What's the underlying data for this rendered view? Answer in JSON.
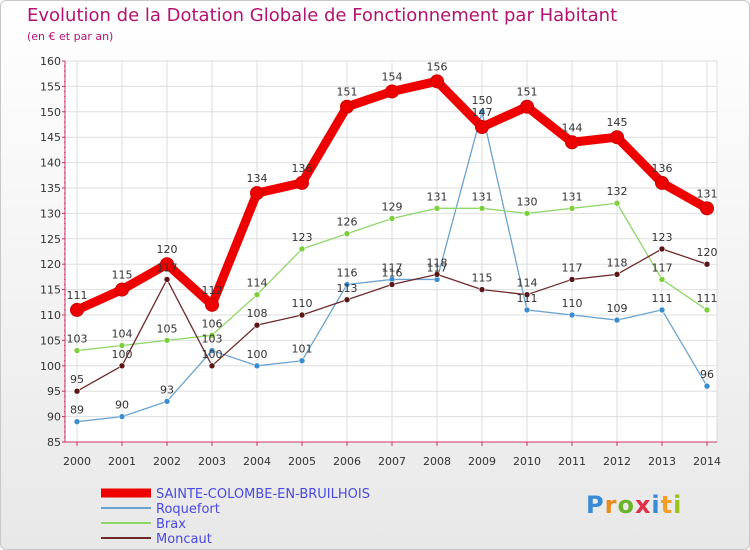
{
  "title": "Evolution de la Dotation Globale de Fonctionnement par Habitant",
  "subtitle": "(en € et par an)",
  "logo": {
    "text": "Proxiti",
    "colors": [
      "#3a8bd6",
      "#e98c1c",
      "#6cb42a",
      "#e0304a",
      "#3a8bd6",
      "#f0a020",
      "#9ac31c"
    ]
  },
  "chart_data": {
    "type": "line",
    "title": "Evolution de la Dotation Globale de Fonctionnement par Habitant",
    "ylabel": "(en € et par an)",
    "xlabel": "",
    "ylim": [
      85,
      160
    ],
    "yticks": [
      85,
      90,
      95,
      100,
      105,
      110,
      115,
      120,
      125,
      130,
      135,
      140,
      145,
      150,
      155,
      160
    ],
    "x": [
      "2000",
      "2001",
      "2002",
      "2003",
      "2004",
      "2005",
      "2006",
      "2007",
      "2008",
      "2009",
      "2010",
      "2011",
      "2012",
      "2013",
      "2014"
    ],
    "series": [
      {
        "name": "SAINTE-COLOMBE-EN-BRUILHOIS",
        "color": "#ee0000",
        "marker_color": "#ee0000",
        "bold": true,
        "values": [
          111,
          115,
          120,
          112,
          134,
          136,
          151,
          154,
          156,
          147,
          151,
          144,
          145,
          136,
          131
        ]
      },
      {
        "name": "Roquefort",
        "color": "#6ba3d0",
        "marker_color": "#3b8cd0",
        "bold": false,
        "values": [
          89,
          90,
          93,
          103,
          100,
          101,
          116,
          117,
          117,
          150,
          111,
          110,
          109,
          111,
          96
        ]
      },
      {
        "name": "Brax",
        "color": "#8fd66a",
        "marker_color": "#7ccf3c",
        "bold": false,
        "values": [
          103,
          104,
          105,
          106,
          114,
          123,
          126,
          129,
          131,
          131,
          130,
          131,
          132,
          117,
          111
        ]
      },
      {
        "name": "Moncaut",
        "color": "#6e2a2a",
        "marker_color": "#5a1515",
        "bold": false,
        "values": [
          95,
          100,
          117,
          100,
          108,
          110,
          113,
          116,
          118,
          115,
          114,
          117,
          118,
          123,
          120
        ]
      }
    ],
    "point_labels": [
      [
        "111",
        "115",
        "120",
        "112",
        "134",
        "136",
        "151",
        "154",
        "156",
        "147",
        "151",
        "144",
        "145",
        "136",
        "131"
      ],
      [
        "89",
        "90",
        "93",
        "103",
        "100",
        "101",
        "116",
        "117",
        "117",
        "150",
        "111",
        "110",
        "109",
        "111",
        "96"
      ],
      [
        "103",
        "104",
        "105",
        "106",
        "114",
        "123",
        "126",
        "129",
        "131",
        "131",
        "130",
        "131",
        "132",
        "117",
        "111"
      ],
      [
        "95",
        "100",
        "117",
        "100",
        "108",
        "110",
        "113",
        "116",
        "118",
        "115",
        "114",
        "117",
        "118",
        "123",
        "120"
      ]
    ],
    "legend": "bottom-left"
  }
}
